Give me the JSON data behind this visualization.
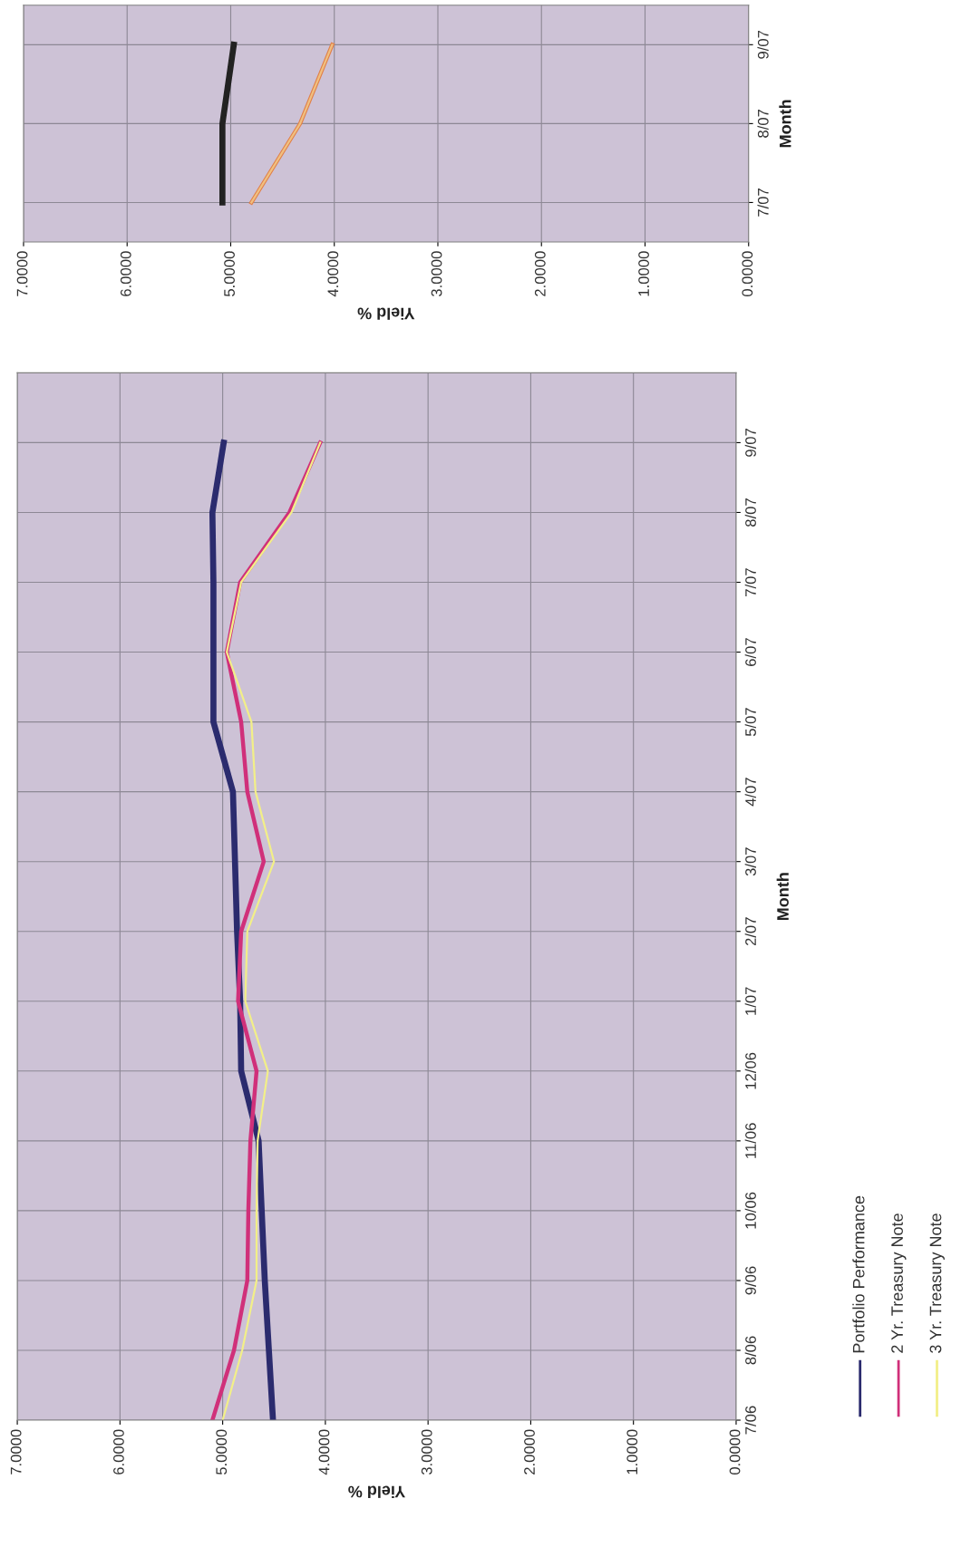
{
  "chart_data": [
    {
      "type": "line",
      "orientation": "horizontal",
      "xlabel": "Yield %",
      "ylabel": "Month",
      "categories": [
        "9/07",
        "8/07",
        "7/07",
        "6/07",
        "5/07",
        "4/07",
        "3/07",
        "2/07",
        "1/07",
        "12/06",
        "11/06",
        "10/06",
        "9/06",
        "8/06",
        "7/06"
      ],
      "series": [
        {
          "name": "Portfolio Performance",
          "color": "#2b2b6e",
          "values": [
            4.99,
            5.1,
            5.09,
            5.09,
            5.09,
            4.9,
            4.88,
            4.86,
            4.83,
            4.82,
            4.65,
            4.62,
            4.59,
            4.55,
            4.51
          ]
        },
        {
          "name": "2 Yr. Treasury Note",
          "color": "#d0307a",
          "values": [
            4.05,
            4.35,
            4.83,
            4.96,
            4.82,
            4.76,
            4.6,
            4.82,
            4.85,
            4.67,
            4.73,
            4.75,
            4.76,
            4.89,
            5.1
          ]
        },
        {
          "name": "3 Yr. Treasury Note",
          "color": "#f2ef88",
          "values": [
            4.05,
            4.33,
            4.82,
            4.96,
            4.72,
            4.68,
            4.5,
            4.76,
            4.78,
            4.56,
            4.66,
            4.67,
            4.67,
            4.81,
            5.0
          ]
        }
      ],
      "xlim": [
        7,
        0
      ],
      "xticks": [
        {
          "value": 7,
          "label": "7.0000"
        },
        {
          "value": 6,
          "label": "6.0000"
        },
        {
          "value": 5,
          "label": "5.0000"
        },
        {
          "value": 4,
          "label": "4.0000"
        },
        {
          "value": 3,
          "label": "3.0000"
        },
        {
          "value": 2,
          "label": "2.0000"
        },
        {
          "value": 1,
          "label": "1.0000"
        },
        {
          "value": 0,
          "label": "0.0000"
        }
      ],
      "grid": true,
      "legend": "bottom right",
      "line_style": "solid"
    },
    {
      "type": "line",
      "orientation": "horizontal",
      "xlabel": "Yield %",
      "ylabel": "Month",
      "categories": [
        "9/07",
        "8/07",
        "7/07"
      ],
      "series": [
        {
          "color": "#222222",
          "values": [
            4.97,
            5.08,
            5.08
          ]
        },
        {
          "color": "#e0804a",
          "values": [
            4.02,
            4.33,
            4.8
          ]
        },
        {
          "color": "#f0c080",
          "values": [
            4.02,
            4.33,
            4.8
          ]
        }
      ],
      "xlim": [
        7,
        0
      ],
      "xticks": [
        {
          "value": 7,
          "label": "7.0000"
        },
        {
          "value": 6,
          "label": "6.0000"
        },
        {
          "value": 5,
          "label": "5.0000"
        },
        {
          "value": 4,
          "label": "4.0000"
        },
        {
          "value": 3,
          "label": "3.0000"
        },
        {
          "value": 2,
          "label": "2.0000"
        },
        {
          "value": 1,
          "label": "1.0000"
        },
        {
          "value": 0,
          "label": "0.0000"
        }
      ],
      "grid": true,
      "line_style": "solid"
    }
  ]
}
